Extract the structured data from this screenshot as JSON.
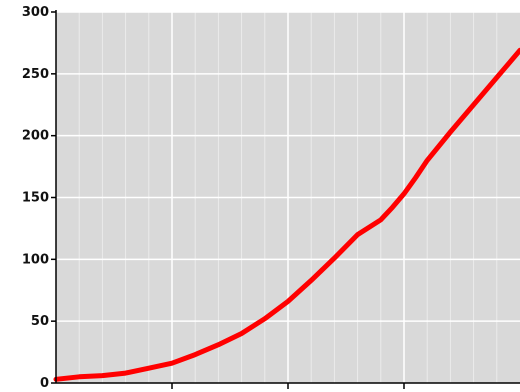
{
  "chart_data": {
    "type": "line",
    "title": "",
    "xlabel": "",
    "ylabel": "",
    "ylim": [
      0,
      300
    ],
    "xlim": [
      0,
      4
    ],
    "yticks": [
      0,
      50,
      100,
      150,
      200,
      250,
      300
    ],
    "ytick_labels": [
      "0",
      "50",
      "100",
      "150",
      "200",
      "250",
      "300"
    ],
    "xticks": [
      1,
      2,
      3
    ],
    "x_minor_per_major": 5,
    "grid": true,
    "background_color": "#d9d9d9",
    "grid_major_color": "#ffffff",
    "grid_minor_color": "#ebebeb",
    "series": [
      {
        "color": "#ff0000",
        "x": [
          0,
          0.2,
          0.4,
          0.6,
          0.8,
          1.0,
          1.2,
          1.4,
          1.6,
          1.8,
          2.0,
          2.2,
          2.4,
          2.6,
          2.8,
          2.9,
          3.0,
          3.1,
          3.2,
          3.4,
          3.6,
          3.8,
          4.0
        ],
        "values": [
          3,
          5,
          6,
          8,
          12,
          16,
          23,
          31,
          40,
          52,
          66,
          83,
          101,
          120,
          132,
          142,
          153,
          166,
          180,
          203,
          225,
          247,
          269
        ]
      }
    ]
  }
}
